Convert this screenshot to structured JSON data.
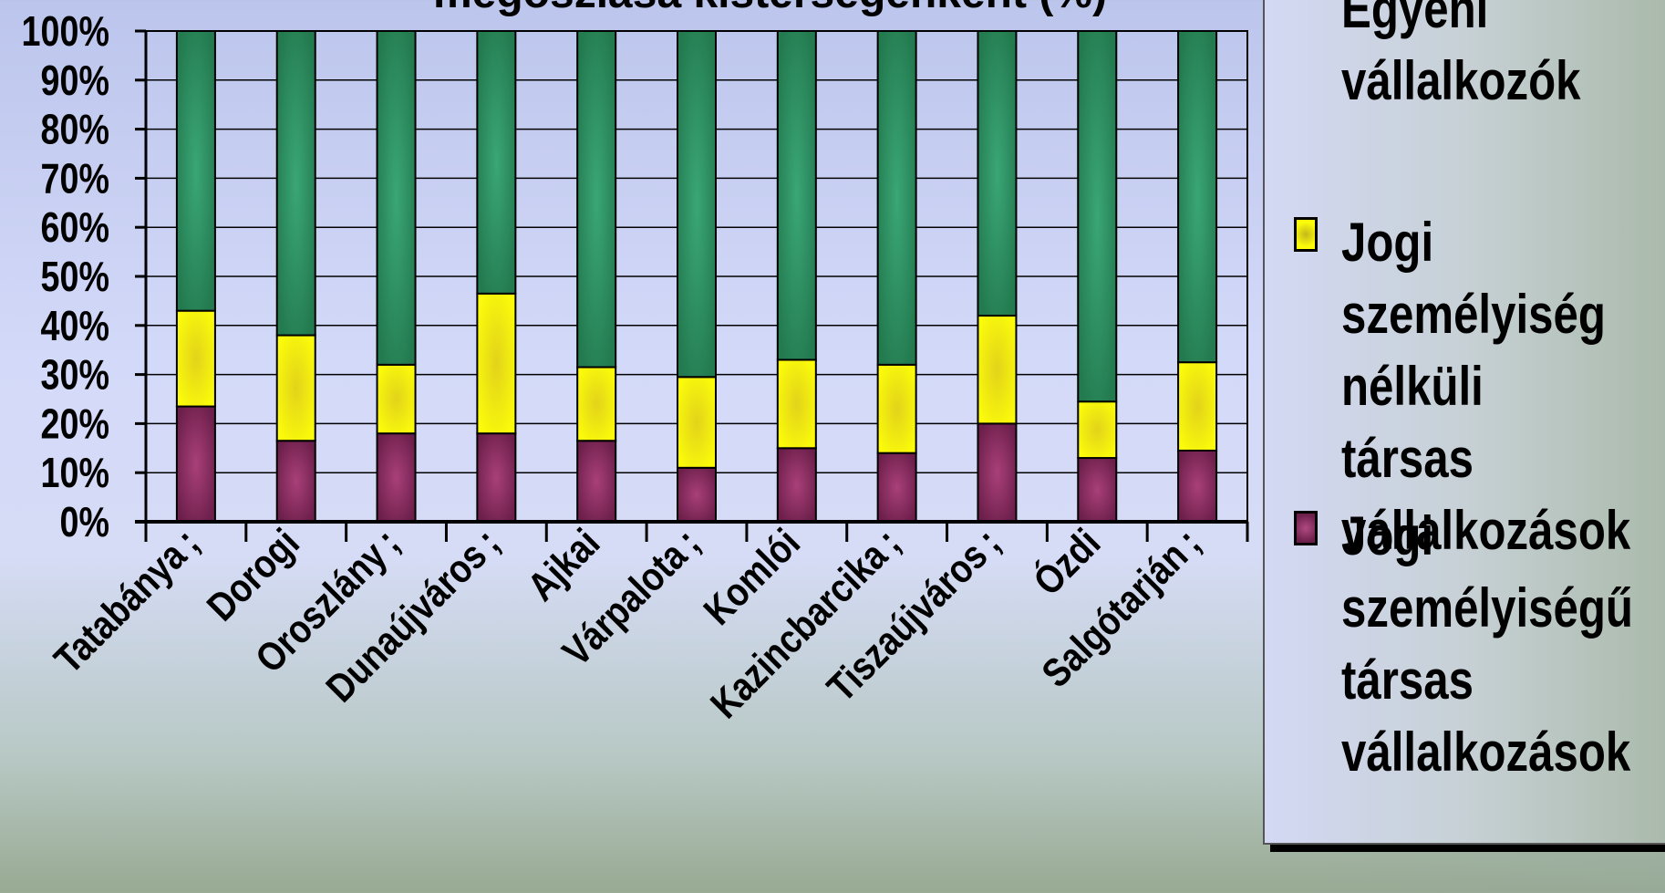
{
  "chart_data": {
    "type": "bar",
    "stacked": "percent",
    "title": "megoszlása kistérségenként (%)",
    "xlabel": "",
    "ylabel": "",
    "ylim": [
      0,
      100
    ],
    "yticks": [
      "0%",
      "10%",
      "20%",
      "30%",
      "40%",
      "50%",
      "60%",
      "70%",
      "80%",
      "90%",
      "100%"
    ],
    "grid": true,
    "legend_position": "right",
    "categories": [
      "Tatabányai",
      "Dorogi",
      "Oroszlányi",
      "Dunaújvárosi",
      "Ajkai",
      "Várpalotai",
      "Komlói",
      "Kazincbarcikai",
      "Tiszaújvárosi",
      "Ózdi",
      "Salgótarjáni"
    ],
    "category_labels_shown": [
      "Tatabánya ;",
      "Dorogi",
      "Oroszlány ;",
      "Dunaújváros ;",
      "Ajkai",
      "Várpalota ;",
      "Komlói",
      "Kazincbarcika ;",
      "Tiszaújváros ;",
      "Ózdi",
      "Salgótarján ;"
    ],
    "series": [
      {
        "name": "Jogi személyiségű társas vállalkozások",
        "color": "#8e2f67",
        "values": [
          23.5,
          16.5,
          18,
          18,
          16.5,
          11,
          15,
          14,
          20,
          13,
          14.5
        ]
      },
      {
        "name": "Jogi személyiség nélküli társas vállalkozások",
        "color": "#f2f20a",
        "values": [
          19.5,
          21.5,
          14,
          28.5,
          15,
          18.5,
          18,
          18,
          22,
          11.5,
          18
        ]
      },
      {
        "name": "Egyéni vállalkozók",
        "color": "#2e8b5f",
        "values": [
          57,
          62,
          68,
          53.5,
          68.5,
          70.5,
          67,
          68,
          58,
          75.5,
          67.5
        ]
      }
    ]
  },
  "legend": {
    "items": [
      {
        "label": "Egyéni\nvállalkozók",
        "color": "#2e8b5f"
      },
      {
        "label": "Jogi\nszemélyiség\nnélküli társas\nvállalkozások",
        "color": "#f2f20a"
      },
      {
        "label": "Jogi\nszemélyiségű\ntársas\nvállalkozások",
        "color": "#8e2f67"
      }
    ]
  }
}
